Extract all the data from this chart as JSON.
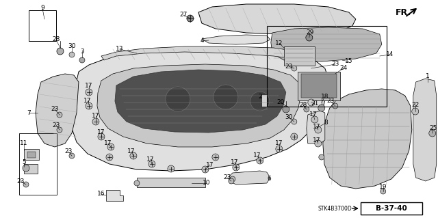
{
  "bg_color": "#ffffff",
  "diagram_code": "STK4B3700D",
  "ref_code": "B-37-40",
  "fr_label": "FR.",
  "line_color": "#000000",
  "gray_light": "#d8d8d8",
  "gray_mid": "#b0b0b0",
  "gray_dark": "#606060",
  "label_fontsize": 6.5
}
